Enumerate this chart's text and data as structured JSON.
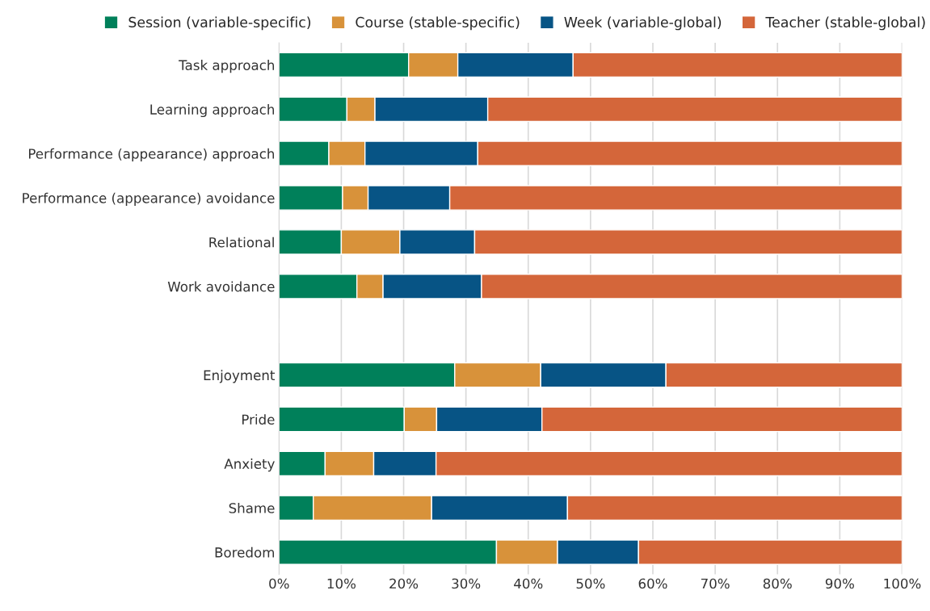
{
  "chart_data": {
    "type": "bar",
    "orientation": "horizontal",
    "stacked": true,
    "categories": [
      "Task approach",
      "Learning approach",
      "Performance (appearance) approach",
      "Performance (appearance) avoidance",
      "Relational",
      "Work avoidance",
      null,
      "Enjoyment",
      "Pride",
      "Anxiety",
      "Shame",
      "Boredom"
    ],
    "series": [
      {
        "name": "Session (variable-specific)",
        "color": "#00805a",
        "values": [
          20.8,
          10.9,
          8.0,
          10.2,
          10.0,
          12.5,
          null,
          28.2,
          20.1,
          7.4,
          5.5,
          34.9
        ]
      },
      {
        "name": "Course (stable-specific)",
        "color": "#d8923a",
        "values": [
          7.9,
          4.5,
          5.8,
          4.1,
          9.4,
          4.2,
          null,
          13.8,
          5.2,
          7.8,
          19.0,
          9.8
        ]
      },
      {
        "name": "Week (variable-global)",
        "color": "#075485",
        "values": [
          18.5,
          18.1,
          18.1,
          13.1,
          12.0,
          15.8,
          null,
          20.1,
          16.9,
          10.0,
          21.8,
          13.0
        ]
      },
      {
        "name": "Teacher (stable-global)",
        "color": "#d4663a",
        "values": [
          52.8,
          66.5,
          68.1,
          72.6,
          68.6,
          67.5,
          null,
          37.9,
          57.8,
          74.8,
          53.7,
          42.3
        ]
      }
    ],
    "xlim": [
      0,
      100
    ],
    "xticks": [
      {
        "value": 0,
        "label": "0%"
      },
      {
        "value": 10,
        "label": "10%"
      },
      {
        "value": 20,
        "label": "20%"
      },
      {
        "value": 30,
        "label": "30%"
      },
      {
        "value": 40,
        "label": "40%"
      },
      {
        "value": 50,
        "label": "50%"
      },
      {
        "value": 60,
        "label": "60%"
      },
      {
        "value": 70,
        "label": "70%"
      },
      {
        "value": 80,
        "label": "80%"
      },
      {
        "value": 90,
        "label": "90%"
      },
      {
        "value": 100,
        "label": "100%"
      }
    ],
    "grid": "x",
    "legend": "top"
  }
}
